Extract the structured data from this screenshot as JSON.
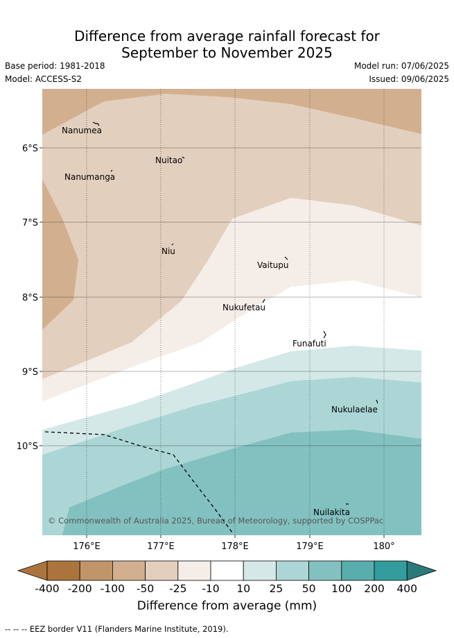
{
  "title_line1": "Difference from average rainfall forecast for",
  "title_line2": "September to November 2025",
  "base_period": "Base period: 1981-2018",
  "model": "Model: ACCESS-S2",
  "model_run": "Model run: 07/06/2025",
  "issued": "Issued: 09/06/2025",
  "copyright": "© Commonwealth of Australia 2025, Bureau of Meteorology, supported by COSPPac",
  "lat_labels": [
    "6°S",
    "7°S",
    "8°S",
    "9°S",
    "10°S"
  ],
  "lon_labels": [
    "176°E",
    "177°E",
    "178°E",
    "179°E",
    "180°"
  ],
  "islands": [
    "Nanumea",
    "Nuitao",
    "Nanumanga",
    "Niu",
    "Vaitupu",
    "Nukufetau",
    "Funafuti",
    "Nukulaelae",
    "Nuilakita"
  ],
  "colorbar": {
    "ticks": [
      "-400",
      "-200",
      "-100",
      "-50",
      "-25",
      "-10",
      "10",
      "25",
      "50",
      "100",
      "200",
      "400"
    ],
    "colors": [
      "#ac743d",
      "#c0956a",
      "#d2b08f",
      "#e3cfbd",
      "#f5ede8",
      "#ffffff",
      "#d4e8e8",
      "#acd6d6",
      "#83c1c1",
      "#5aadad",
      "#339c9c",
      "#2a7a7a"
    ],
    "label": "Difference from average (mm)"
  },
  "eez_legend": "--  --  -- EEZ border V11 (Flanders Marine Institute, 2019)."
}
